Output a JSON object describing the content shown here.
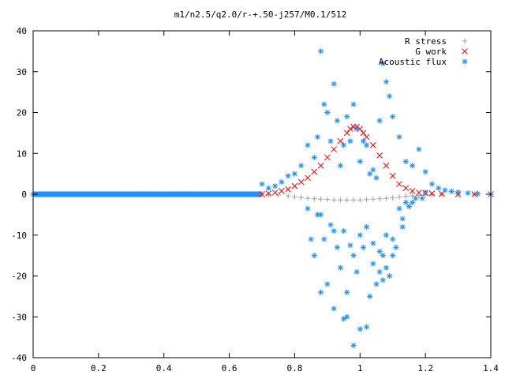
{
  "chart_data": {
    "type": "scatter",
    "title": "m1/n2.5/q2.0/r-+.50-j257/M0.1/512",
    "xlabel": "",
    "ylabel": "",
    "xlim": [
      0,
      1.4
    ],
    "ylim": [
      -40,
      40
    ],
    "grid": false,
    "legend_position": "top-right",
    "x_ticks": [
      "0",
      "0.2",
      "0.4",
      "0.6",
      "0.8",
      "1",
      "1.2",
      "1.4"
    ],
    "y_ticks": [
      "40",
      "30",
      "20",
      "10",
      "0",
      "-10",
      "-20",
      "-30",
      "-40"
    ],
    "series": [
      {
        "name": "R stress",
        "marker": "plus",
        "color": "#a0a0a0",
        "x": [
          0.0,
          0.1,
          0.2,
          0.3,
          0.4,
          0.5,
          0.6,
          0.7,
          0.72,
          0.75,
          0.78,
          0.8,
          0.82,
          0.84,
          0.86,
          0.88,
          0.9,
          0.92,
          0.94,
          0.96,
          0.98,
          1.0,
          1.02,
          1.04,
          1.06,
          1.08,
          1.1,
          1.12,
          1.14,
          1.16,
          1.18,
          1.2,
          1.22,
          1.25,
          1.3,
          1.35,
          1.4
        ],
        "y": [
          0,
          0,
          0,
          0,
          0,
          0,
          0,
          0,
          -0.1,
          -0.2,
          -0.4,
          -0.6,
          -0.8,
          -1.0,
          -1.1,
          -1.2,
          -1.3,
          -1.4,
          -1.4,
          -1.4,
          -1.4,
          -1.4,
          -1.3,
          -1.2,
          -1.1,
          -1.0,
          -0.9,
          -0.7,
          -0.5,
          -0.4,
          -0.3,
          -0.2,
          -0.1,
          0,
          0,
          0,
          0
        ]
      },
      {
        "name": "G work",
        "marker": "cross",
        "color": "#ff0000",
        "x": [
          0.7,
          0.72,
          0.74,
          0.76,
          0.78,
          0.8,
          0.82,
          0.84,
          0.86,
          0.88,
          0.9,
          0.92,
          0.94,
          0.96,
          0.97,
          0.98,
          0.99,
          1.0,
          1.01,
          1.02,
          1.04,
          1.06,
          1.08,
          1.1,
          1.12,
          1.14,
          1.16,
          1.18,
          1.2,
          1.22,
          1.25,
          1.3,
          1.35,
          1.4
        ],
        "y": [
          0,
          0.2,
          0.4,
          0.8,
          1.2,
          2.0,
          3.0,
          4.0,
          5.5,
          7.0,
          9.0,
          11.0,
          13.0,
          15.0,
          16.0,
          16.5,
          16.5,
          16.0,
          15.0,
          14.0,
          12.0,
          9.5,
          7.0,
          4.5,
          2.5,
          1.5,
          0.8,
          0.4,
          0.3,
          0.2,
          0.1,
          0,
          0,
          0
        ]
      },
      {
        "name": "Acoustic flux",
        "marker": "star",
        "color": "#1e90ff",
        "x": [
          0.0,
          0.1,
          0.2,
          0.3,
          0.4,
          0.5,
          0.6,
          0.7,
          0.72,
          0.74,
          0.76,
          0.78,
          0.8,
          0.82,
          0.84,
          0.86,
          0.87,
          0.88,
          0.89,
          0.9,
          0.91,
          0.92,
          0.93,
          0.94,
          0.95,
          0.96,
          0.97,
          0.98,
          0.99,
          1.0,
          1.01,
          1.02,
          1.03,
          1.04,
          1.05,
          1.06,
          1.07,
          1.08,
          1.09,
          1.1,
          1.12,
          1.14,
          1.16,
          1.18,
          1.2,
          1.22,
          1.24,
          1.26,
          1.28,
          1.3,
          1.33,
          1.36,
          1.4,
          0.88,
          0.89,
          0.91,
          0.93,
          0.95,
          0.97,
          0.98,
          1.0,
          1.02,
          1.04,
          1.06,
          1.08,
          0.86,
          0.9,
          0.92,
          0.94,
          0.96,
          0.99,
          1.01,
          1.05,
          1.07,
          1.09,
          1.11,
          1.13,
          1.15,
          0.84,
          0.87,
          0.92,
          0.96,
          1.0,
          1.03,
          1.06,
          1.08,
          1.1,
          1.13,
          1.16,
          1.19,
          0.85,
          0.88,
          0.95,
          0.98,
          1.02,
          1.04,
          1.07,
          1.1,
          1.12,
          1.14,
          1.17,
          1.2
        ],
        "y": [
          0,
          0,
          0,
          0,
          0,
          0,
          0,
          2.5,
          1.5,
          2.0,
          3.0,
          4.5,
          5.0,
          7.0,
          12.0,
          9.0,
          14.0,
          35.0,
          22.0,
          20.0,
          13.0,
          27.0,
          18.0,
          7.0,
          12.0,
          19.0,
          13.0,
          22.0,
          16.0,
          8.0,
          13.0,
          12.0,
          5.0,
          6.0,
          4.0,
          18.0,
          32.0,
          27.5,
          24.0,
          19.0,
          14.0,
          8.0,
          7.0,
          11.0,
          5.5,
          2.5,
          1.5,
          1.0,
          0.7,
          0.5,
          0.3,
          0.1,
          0,
          -5.0,
          -11.0,
          -7.5,
          -13.0,
          -9.0,
          -12.5,
          -15.0,
          -10.0,
          -8.0,
          -12.0,
          -14.0,
          -10.0,
          -15.0,
          -22.0,
          -9.0,
          -18.0,
          -24.0,
          -19.0,
          -13.0,
          -22.0,
          -15.0,
          -20.0,
          -13.0,
          -8.0,
          -3.0,
          -3.5,
          -5.0,
          -28.0,
          -30.0,
          -33.0,
          -25.0,
          -19.0,
          -18.0,
          -11.0,
          -6.0,
          -2.0,
          -1.0,
          -11.0,
          -24.0,
          -30.5,
          -37.0,
          -32.5,
          -17.0,
          -21.0,
          -15.0,
          -3.5,
          -2.0,
          -1.0,
          0.5
        ]
      }
    ]
  }
}
